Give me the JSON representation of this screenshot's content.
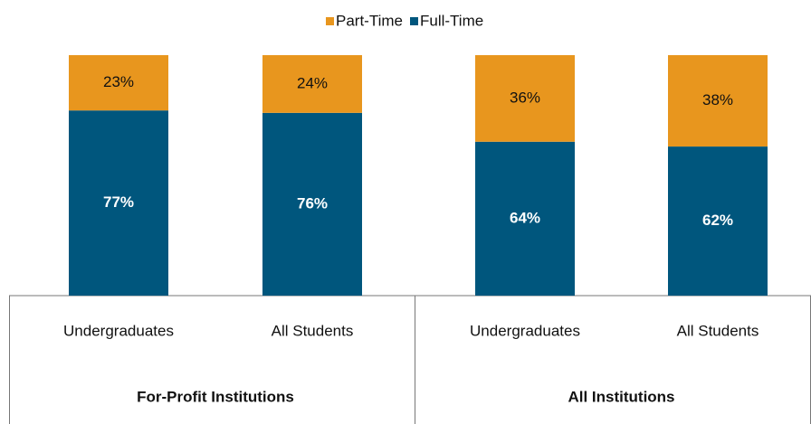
{
  "chart_data": {
    "type": "stacked_bar",
    "categories": [
      "Undergraduates",
      "All Students",
      "Undergraduates",
      "All Students"
    ],
    "groups": [
      "For-Profit Institutions",
      "All Institutions"
    ],
    "series": [
      {
        "name": "Full-Time",
        "color": "#00567d",
        "values": [
          77,
          76,
          64,
          62
        ],
        "value_labels": [
          "77%",
          "76%",
          "64%",
          "62%"
        ]
      },
      {
        "name": "Part-Time",
        "color": "#e8961e",
        "values": [
          23,
          24,
          36,
          38
        ],
        "value_labels": [
          "23%",
          "24%",
          "36%",
          "38%"
        ]
      }
    ]
  }
}
